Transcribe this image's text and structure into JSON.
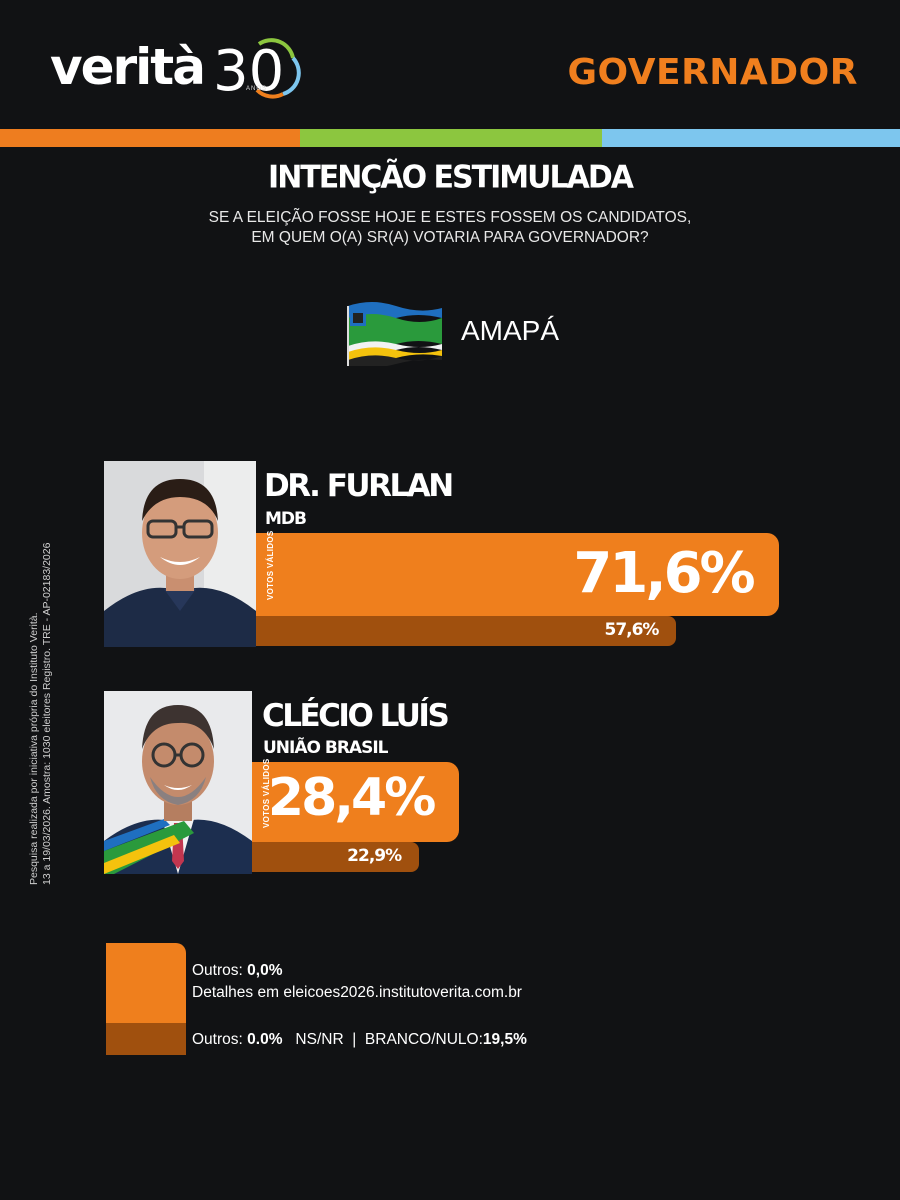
{
  "brand": {
    "logo_text": "verità",
    "logo_number": "30",
    "logo_sub": "ANOS",
    "colors": {
      "orange": "#EF7F1D",
      "green": "#8CC63F",
      "blue": "#7DC6EE",
      "dark_orange": "#A0500E",
      "background": "#111214"
    }
  },
  "office": "GOVERNADOR",
  "survey": {
    "title": "INTENÇÃO ESTIMULADA",
    "question_line1": "SE A ELEIÇÃO FOSSE HOJE E ESTES FOSSEM OS CANDIDATOS,",
    "question_line2": "EM QUEM O(A) SR(A) VOTARIA PARA GOVERNADOR?"
  },
  "state": {
    "name": "AMAPÁ",
    "flag_icon": "amapa-flag-icon"
  },
  "chart_data": {
    "type": "bar",
    "orientation": "horizontal",
    "categories": [
      "DR. FURLAN",
      "CLÉCIO LUÍS"
    ],
    "parties": [
      "MDB",
      "UNIÃO BRASIL"
    ],
    "series": [
      {
        "name": "VOTOS VÁLIDOS",
        "values": [
          71.6,
          28.4
        ],
        "labels": [
          "71,6%",
          "28,4%"
        ]
      },
      {
        "values": [
          57.6,
          22.9
        ],
        "labels": [
          "57,6%",
          "22,9%"
        ]
      }
    ]
  },
  "legend": {
    "others_label": "Outros:",
    "others_value": "0,0%",
    "details": "Detalhes em eleicoes2026.institutoverita.com.br",
    "totals_others_label": "Outros:",
    "totals_others_value": "0.0%",
    "nsnr": "NS/NR",
    "separator": "|",
    "blank_label": "BRANCO/NULO:",
    "blank_value": "19,5%"
  },
  "methodology": {
    "line1": "Pesquisa realizada por iniciativa própria do Instituto Verità.",
    "line2": "13 a 19/03/2026. Amostra: 1030 eleitores Registro. TRE - AP-02183/2026"
  }
}
